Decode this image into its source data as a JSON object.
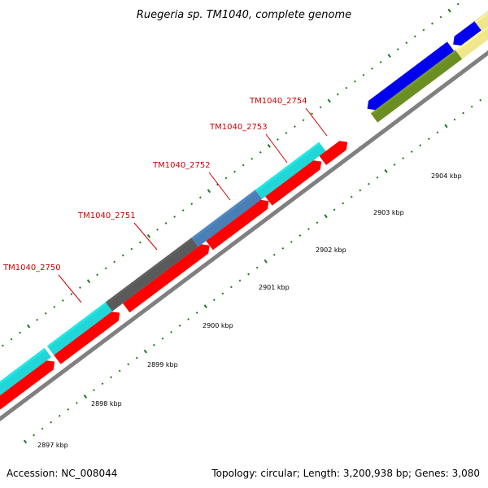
{
  "title": "Ruegeria sp. TM1040, complete genome",
  "accession": "Accession: NC_008044",
  "summary": "Topology: circular; Length: 3,200,938 bp; Genes: 3,080",
  "colors": {
    "backbone": "#808080",
    "tick": "#1a7a1a",
    "label": "#cc0000",
    "red": "#ff0000",
    "cyan": "#21d6d6",
    "darkgray": "#5a5a5a",
    "steelblue": "#4a7fb5",
    "blue": "#0000ee",
    "olive": "#6b8e23",
    "khaki": "#f0e68c"
  },
  "scale": {
    "labels": [
      "2897 kbp",
      "2898 kbp",
      "2899 kbp",
      "2900 kbp",
      "2901 kbp",
      "2902 kbp",
      "2903 kbp",
      "2904 kbp"
    ]
  },
  "gene_labels": [
    "TM1040_2750",
    "TM1040_2751",
    "TM1040_2752",
    "TM1040_2753",
    "TM1040_2754"
  ],
  "features": [
    {
      "track": "outer",
      "color": "cyan"
    },
    {
      "track": "outer",
      "color": "cyan"
    },
    {
      "track": "outer",
      "color": "darkgray"
    },
    {
      "track": "outer",
      "color": "steelblue"
    },
    {
      "track": "outer",
      "color": "cyan"
    },
    {
      "track": "inner",
      "color": "red"
    },
    {
      "track": "inner",
      "color": "red"
    },
    {
      "track": "inner",
      "color": "red"
    },
    {
      "track": "inner",
      "color": "red"
    },
    {
      "track": "inner",
      "color": "red"
    },
    {
      "track": "inner",
      "color": "red"
    },
    {
      "track": "outer",
      "color": "blue"
    },
    {
      "track": "outer",
      "color": "blue"
    },
    {
      "track": "outer",
      "color": "khaki"
    },
    {
      "track": "inner",
      "color": "olive"
    },
    {
      "track": "inner",
      "color": "khaki"
    }
  ]
}
